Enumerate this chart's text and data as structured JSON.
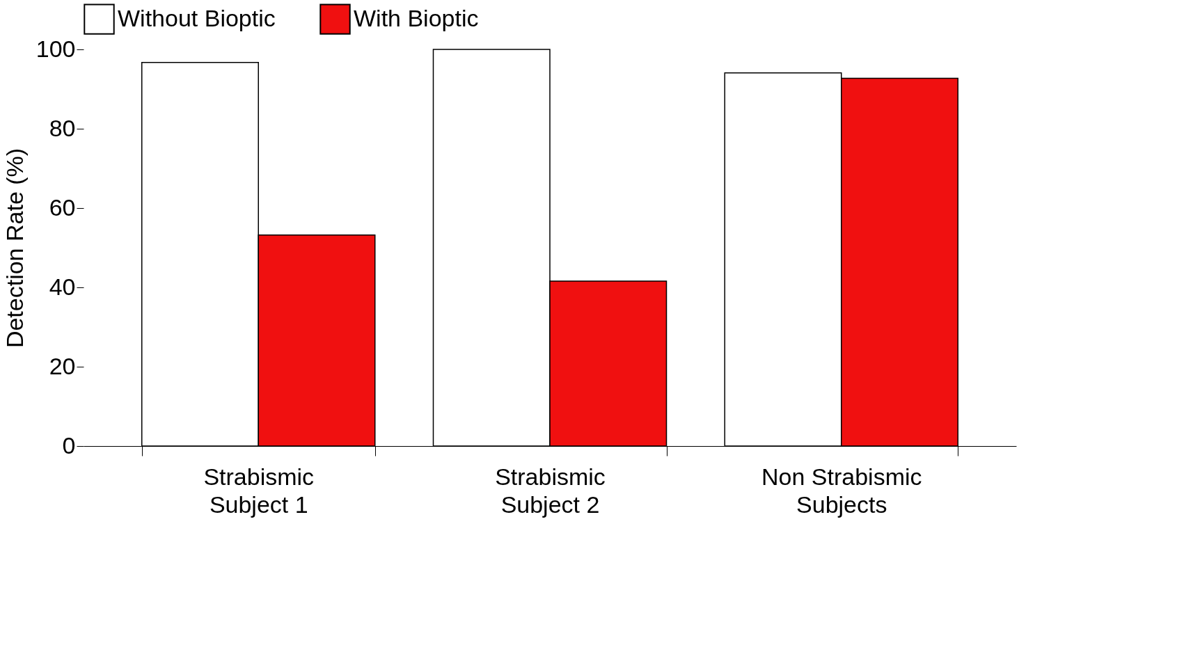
{
  "chart_data": {
    "type": "bar",
    "ylabel": "Detection Rate (%)",
    "categories": [
      "Strabismic\nSubject 1",
      "Strabismic\nSubject 2",
      "Non Strabismic\nSubjects"
    ],
    "series": [
      {
        "name": "Without Bioptic",
        "color": "#ffffff",
        "values": [
          96.7,
          100,
          94.1
        ]
      },
      {
        "name": "With Bioptic",
        "color": "#f01010",
        "values": [
          53.2,
          41.6,
          92.7
        ]
      }
    ],
    "ylim": [
      0,
      100
    ],
    "yticks": [
      0,
      20,
      40,
      60,
      80,
      100
    ],
    "grid": false,
    "legend": "top"
  }
}
